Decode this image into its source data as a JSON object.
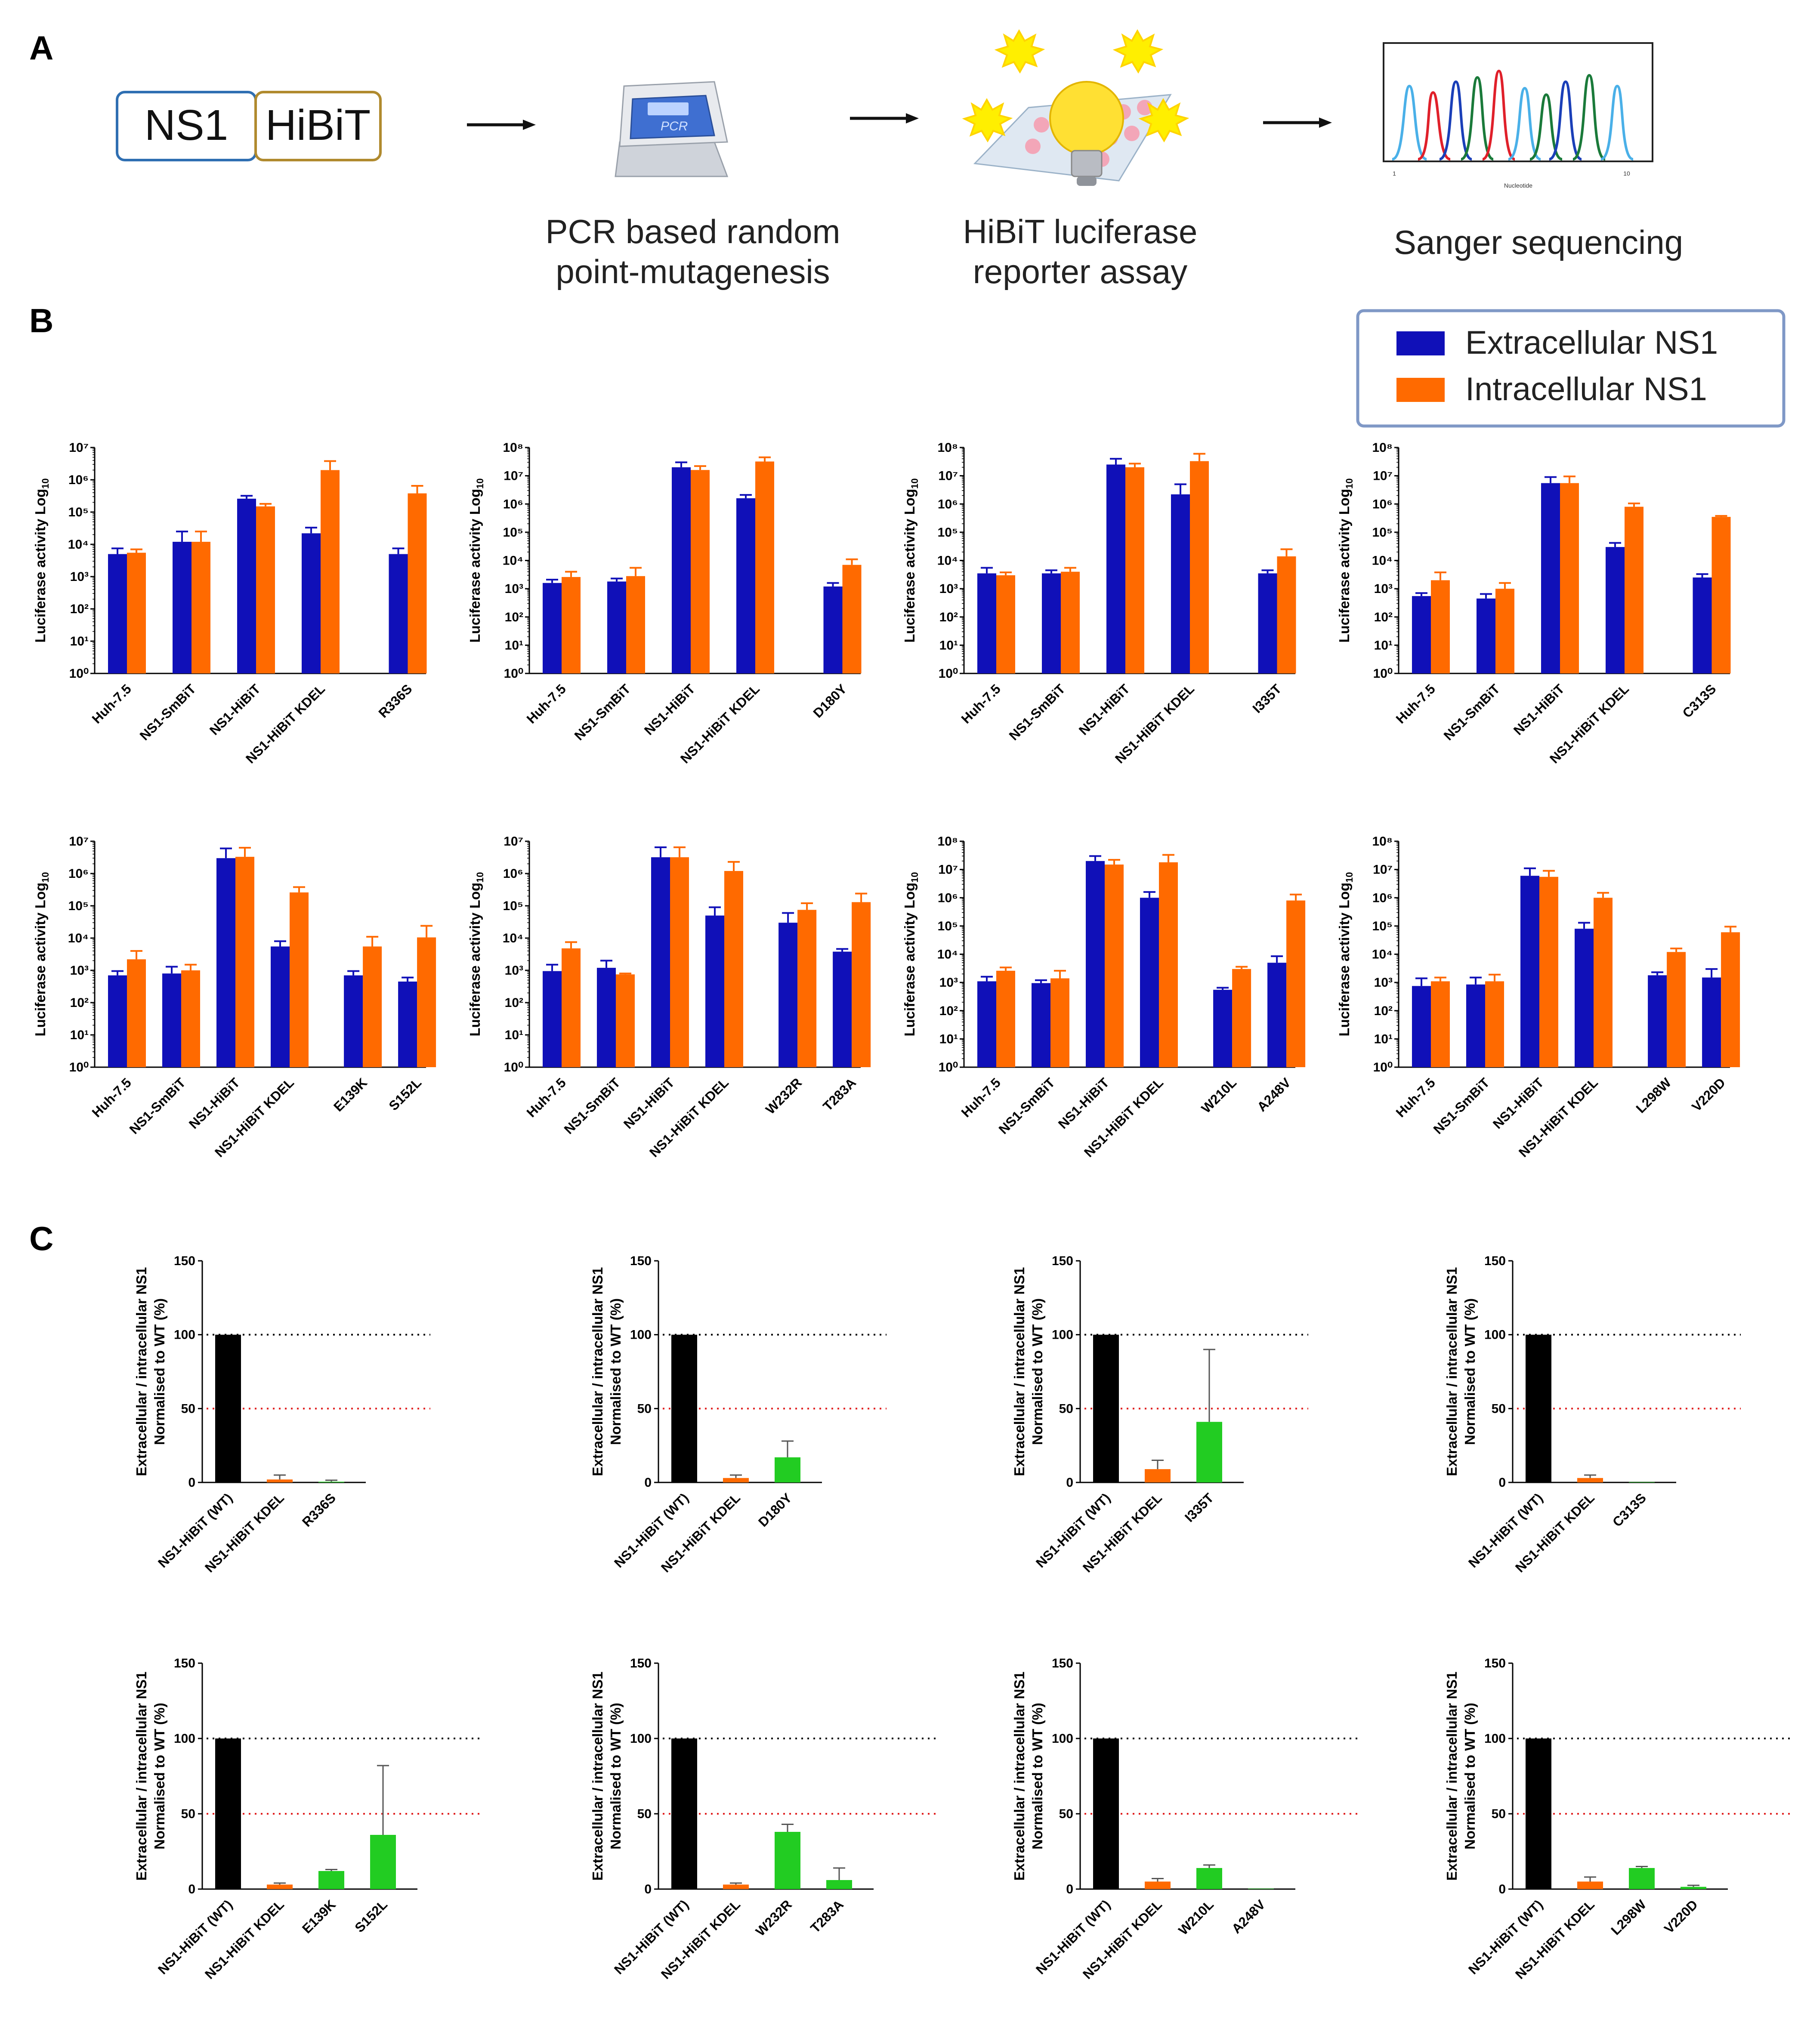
{
  "panels": {
    "a": "A",
    "b": "B",
    "c": "C"
  },
  "panel_a": {
    "construct": [
      "NS1",
      "HiBiT"
    ],
    "steps": [
      [
        "PCR based random",
        "point-mutagenesis"
      ],
      [
        "HiBiT luciferase",
        "reporter assay"
      ],
      [
        "Sanger sequencing"
      ]
    ],
    "pcr_label": "PCR",
    "chromatogram": {
      "x_start": "1",
      "x_end": "10",
      "xlabel": "Nucleotide"
    }
  },
  "legend": {
    "extracellular": "Extracellular NS1",
    "intracellular": "Intracellular NS1"
  },
  "colors": {
    "extracellular": "#1010b8",
    "intracellular": "#ff6a00",
    "wt": "#000000",
    "kdel": "#ff6a00",
    "mutant": "#22cc22",
    "ref100": "#000000",
    "ref50": "#e02020"
  },
  "chart_data": {
    "panel_b": {
      "type": "bar",
      "ylabel": "Luciferase activity Log10",
      "series_names": [
        "Extracellular NS1",
        "Intracellular NS1"
      ],
      "charts": [
        {
          "categories": [
            "Huh-7.5",
            "NS1-SmBiT",
            "NS1-HiBiT",
            "NS1-HiBiT KDEL",
            "R336S"
          ],
          "ymax_exp": 7,
          "extracellular": [
            5000,
            12000,
            260000,
            22000,
            5000
          ],
          "intracellular": [
            5500,
            12000,
            150000,
            2000000,
            380000
          ],
          "ext_err": [
            7500,
            25000,
            320000,
            33000,
            7500
          ],
          "int_err": [
            7000,
            25000,
            180000,
            3800000,
            650000
          ]
        },
        {
          "categories": [
            "Huh-7.5",
            "NS1-SmBiT",
            "NS1-HiBiT",
            "NS1-HiBiT KDEL",
            "D180Y"
          ],
          "ymax_exp": 8,
          "extracellular": [
            1600,
            1800,
            20000000,
            1600000,
            1200
          ],
          "intracellular": [
            2600,
            2800,
            16000000,
            32000000,
            7000
          ],
          "ext_err": [
            2100,
            2300,
            30000000,
            2100000,
            1600
          ],
          "int_err": [
            4000,
            5500,
            22000000,
            45000000,
            11000
          ]
        },
        {
          "categories": [
            "Huh-7.5",
            "NS1-SmBiT",
            "NS1-HiBiT",
            "NS1-HiBiT KDEL",
            "I335T"
          ],
          "ymax_exp": 8,
          "extracellular": [
            3500,
            3500,
            25000000,
            2200000,
            3500
          ],
          "intracellular": [
            3000,
            4000,
            20000000,
            33000000,
            14000
          ],
          "ext_err": [
            5500,
            4500,
            40000000,
            5000000,
            4500
          ],
          "int_err": [
            3800,
            5500,
            27000000,
            60000000,
            25000
          ]
        },
        {
          "categories": [
            "Huh-7.5",
            "NS1-SmBiT",
            "NS1-HiBiT",
            "NS1-HiBiT KDEL",
            "C313S"
          ],
          "ymax_exp": 8,
          "extracellular": [
            550,
            450,
            5500000,
            30000,
            2500
          ],
          "intracellular": [
            2000,
            1000,
            5500000,
            800000,
            350000
          ],
          "ext_err": [
            700,
            650,
            9000000,
            42000,
            3300
          ],
          "int_err": [
            3800,
            1600,
            9500000,
            1050000,
            380000
          ]
        },
        {
          "categories": [
            "Huh-7.5",
            "NS1-SmBiT",
            "NS1-HiBiT",
            "NS1-HiBiT KDEL",
            "E139K",
            "S152L"
          ],
          "ymax_exp": 7,
          "extracellular": [
            700,
            800,
            3000000,
            5500,
            700,
            450
          ],
          "intracellular": [
            2200,
            1000,
            3300000,
            260000,
            5500,
            10500
          ],
          "ext_err": [
            950,
            1300,
            6000000,
            8000,
            950,
            600
          ],
          "int_err": [
            4000,
            1500,
            6300000,
            380000,
            11000,
            24000
          ]
        },
        {
          "categories": [
            "Huh-7.5",
            "NS1-SmBiT",
            "NS1-HiBiT",
            "NS1-HiBiT KDEL",
            "W232R",
            "T283A"
          ],
          "ymax_exp": 7,
          "extracellular": [
            950,
            1200,
            3200000,
            50000,
            30000,
            3800
          ],
          "intracellular": [
            4800,
            750,
            3200000,
            1200000,
            75000,
            130000
          ],
          "ext_err": [
            1500,
            2000,
            6500000,
            90000,
            60000,
            4600
          ],
          "int_err": [
            7500,
            800,
            6500000,
            2300000,
            120000,
            240000
          ]
        },
        {
          "categories": [
            "Huh-7.5",
            "NS1-SmBiT",
            "NS1-HiBiT",
            "NS1-HiBiT KDEL",
            "W210L",
            "A248V"
          ],
          "ymax_exp": 8,
          "extracellular": [
            1100,
            950,
            20000000,
            1000000,
            550,
            5000
          ],
          "intracellular": [
            2600,
            1400,
            15000000,
            18000000,
            3000,
            800000
          ],
          "ext_err": [
            1600,
            1200,
            30000000,
            1600000,
            650,
            8500
          ],
          "int_err": [
            3400,
            2600,
            22000000,
            33000000,
            3600,
            1300000
          ]
        },
        {
          "categories": [
            "Huh-7.5",
            "NS1-SmBiT",
            "NS1-HiBiT",
            "NS1-HiBiT KDEL",
            "L298W",
            "V220D"
          ],
          "ymax_exp": 8,
          "extracellular": [
            750,
            850,
            6000000,
            80000,
            1800,
            1500
          ],
          "intracellular": [
            1100,
            1100,
            5500000,
            1000000,
            12000,
            60000
          ],
          "ext_err": [
            1400,
            1500,
            11000000,
            130000,
            2300,
            3000
          ],
          "int_err": [
            1500,
            1900,
            9000000,
            1500000,
            16000,
            95000
          ]
        }
      ]
    },
    "panel_c": {
      "type": "bar",
      "ylabel": [
        "Extracellular / intracellular NS1",
        "Normalised to WT (%)"
      ],
      "yticks": [
        0,
        50,
        100,
        150
      ],
      "ylim": [
        0,
        150
      ],
      "reference_lines": [
        100,
        50
      ],
      "charts": [
        {
          "categories": [
            "NS1-HiBiT (WT)",
            "NS1-HiBiT KDEL",
            "R336S"
          ],
          "values": [
            100,
            2,
            0.5
          ],
          "errors": [
            0,
            3,
            1
          ]
        },
        {
          "categories": [
            "NS1-HiBiT (WT)",
            "NS1-HiBiT KDEL",
            "D180Y"
          ],
          "values": [
            100,
            3,
            17
          ],
          "errors": [
            0,
            2,
            11
          ]
        },
        {
          "categories": [
            "NS1-HiBiT (WT)",
            "NS1-HiBiT KDEL",
            "I335T"
          ],
          "values": [
            100,
            9,
            41
          ],
          "errors": [
            0,
            6,
            49
          ]
        },
        {
          "categories": [
            "NS1-HiBiT (WT)",
            "NS1-HiBiT KDEL",
            "C313S"
          ],
          "values": [
            100,
            3,
            0.3
          ],
          "errors": [
            0,
            2,
            0
          ]
        },
        {
          "categories": [
            "NS1-HiBiT (WT)",
            "NS1-HiBiT KDEL",
            "E139K",
            "S152L"
          ],
          "values": [
            100,
            3,
            12,
            36
          ],
          "errors": [
            0,
            1,
            1,
            46
          ]
        },
        {
          "categories": [
            "NS1-HiBiT (WT)",
            "NS1-HiBiT KDEL",
            "W232R",
            "T283A"
          ],
          "values": [
            100,
            3,
            38,
            6
          ],
          "errors": [
            0,
            1,
            5,
            8
          ]
        },
        {
          "categories": [
            "NS1-HiBiT (WT)",
            "NS1-HiBiT KDEL",
            "W210L",
            "A248V"
          ],
          "values": [
            100,
            5,
            14,
            0.3
          ],
          "errors": [
            0,
            2,
            2,
            0
          ]
        },
        {
          "categories": [
            "NS1-HiBiT (WT)",
            "NS1-HiBiT KDEL",
            "L298W",
            "V220D"
          ],
          "values": [
            100,
            5,
            14,
            1.5
          ],
          "errors": [
            0,
            3,
            1,
            1
          ]
        }
      ]
    }
  }
}
